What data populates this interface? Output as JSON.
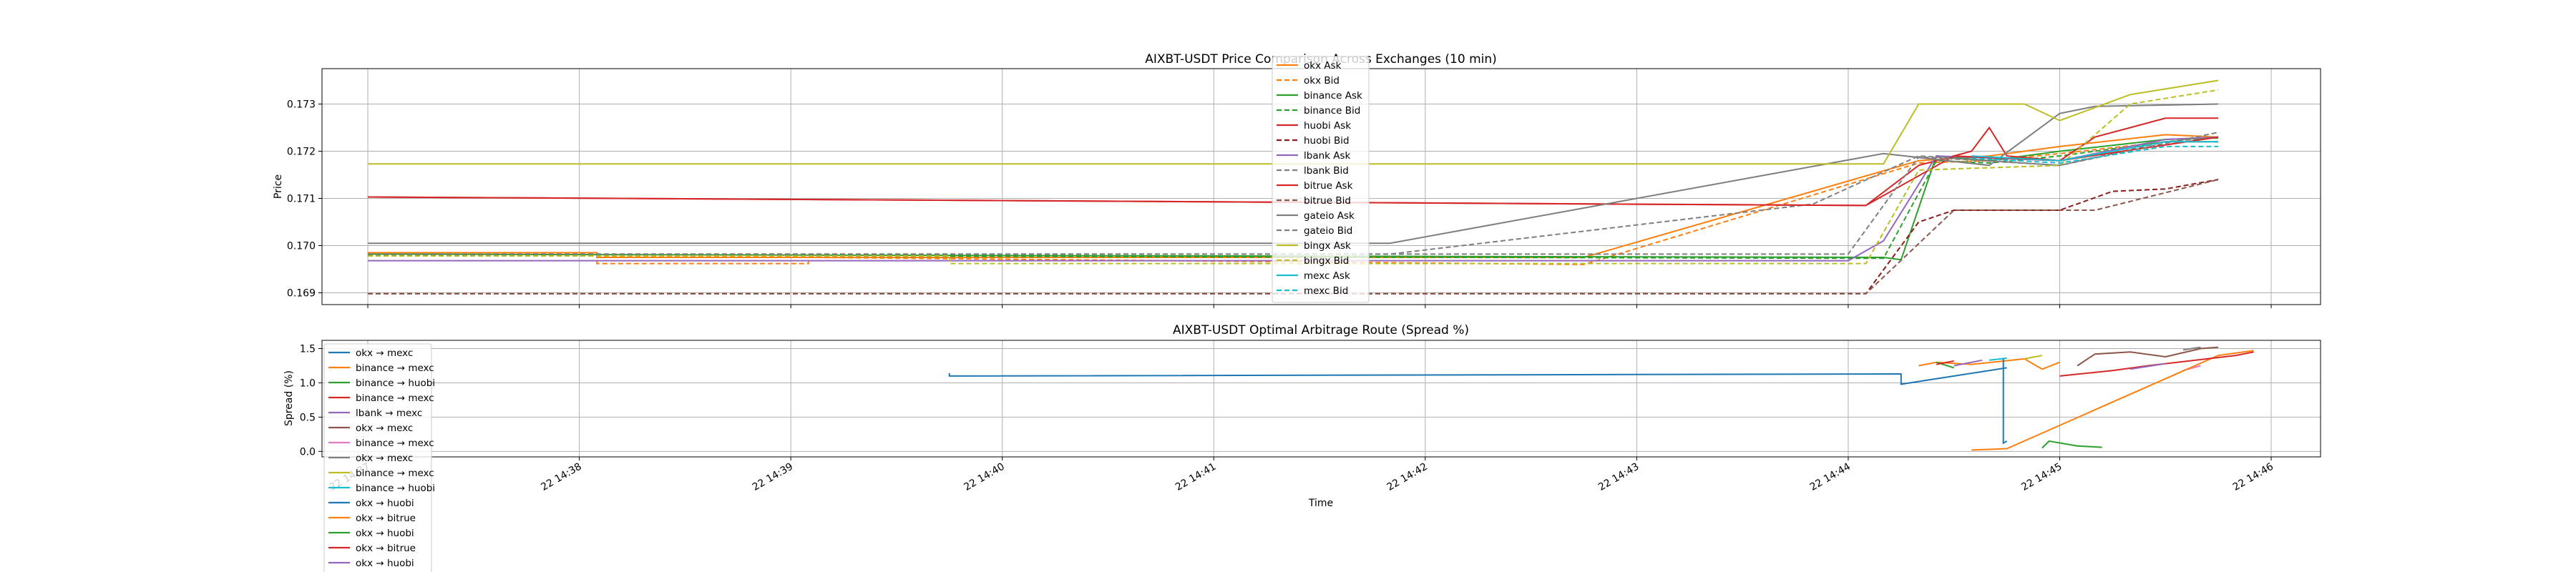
{
  "chart_data": [
    {
      "type": "line",
      "title": "AIXBT-USDT Price Comparison Across Exchanges (10 min)",
      "xlabel": "",
      "ylabel": "Price",
      "xlim": [
        "2025-??-22 14:36:47",
        "2025-??-22 14:46:14"
      ],
      "ylim": [
        0.16875,
        0.17375
      ],
      "yticks": [
        "0.169",
        "0.170",
        "0.171",
        "0.172",
        "0.173"
      ],
      "xticks": [
        "22 14:37",
        "22 14:38",
        "22 14:39",
        "22 14:40",
        "22 14:41",
        "22 14:42",
        "22 14:43",
        "22 14:44",
        "22 14:45",
        "22 14:46"
      ],
      "grid": true,
      "legend_position": "top-center",
      "series": [
        {
          "name": "okx Ask",
          "color": "#ff7f0e",
          "dash": "solid",
          "points": [
            [
              "14:37:00",
              0.16985
            ],
            [
              "14:38:05",
              0.16985
            ],
            [
              "14:38:05",
              0.16975
            ],
            [
              "14:42:45",
              0.16975
            ],
            [
              "14:44:20",
              0.1718
            ],
            [
              "14:44:40",
              0.1719
            ],
            [
              "14:45:00",
              0.1721
            ],
            [
              "14:45:30",
              0.17235
            ],
            [
              "14:45:45",
              0.1723
            ]
          ]
        },
        {
          "name": "okx Bid",
          "color": "#ff7f0e",
          "dash": "dashed",
          "points": [
            [
              "14:37:00",
              0.16982
            ],
            [
              "14:38:05",
              0.16982
            ],
            [
              "14:38:05",
              0.16962
            ],
            [
              "14:39:05",
              0.16962
            ],
            [
              "14:39:05",
              0.16975
            ],
            [
              "14:42:45",
              0.1696
            ],
            [
              "14:44:20",
              0.17175
            ],
            [
              "14:44:40",
              0.1718
            ],
            [
              "14:45:00",
              0.17195
            ],
            [
              "14:45:30",
              0.1722
            ],
            [
              "14:45:45",
              0.1722
            ]
          ]
        },
        {
          "name": "binance Ask",
          "color": "#2ca02c",
          "dash": "solid",
          "points": [
            [
              "14:37:00",
              0.16982
            ],
            [
              "14:44:10",
              0.16975
            ],
            [
              "14:44:15",
              0.1697
            ],
            [
              "14:44:25",
              0.1719
            ],
            [
              "14:44:40",
              0.1718
            ],
            [
              "14:45:00",
              0.172
            ],
            [
              "14:45:30",
              0.17225
            ],
            [
              "14:45:45",
              0.17228
            ]
          ]
        },
        {
          "name": "binance Bid",
          "color": "#2ca02c",
          "dash": "dashed",
          "points": [
            [
              "14:37:00",
              0.1698
            ],
            [
              "14:44:10",
              0.16973
            ],
            [
              "14:44:25",
              0.1718
            ],
            [
              "14:44:40",
              0.17175
            ],
            [
              "14:45:00",
              0.1719
            ],
            [
              "14:45:30",
              0.1722
            ],
            [
              "14:45:45",
              0.1722
            ]
          ]
        },
        {
          "name": "huobi Ask",
          "color": "#d62728",
          "dash": "solid",
          "points": [
            [
              "14:37:00",
              0.17103
            ],
            [
              "14:44:05",
              0.17085
            ],
            [
              "14:44:20",
              0.1717
            ],
            [
              "14:44:35",
              0.172
            ],
            [
              "14:44:40",
              0.1725
            ],
            [
              "14:44:45",
              0.1719
            ],
            [
              "14:45:00",
              0.1718
            ],
            [
              "14:45:10",
              0.1723
            ],
            [
              "14:45:20",
              0.1725
            ],
            [
              "14:45:30",
              0.1727
            ],
            [
              "14:45:45",
              0.1727
            ]
          ]
        },
        {
          "name": "huobi Bid",
          "color": "#8c1c1c",
          "dash": "dashed",
          "points": [
            [
              "14:37:00",
              0.16898
            ],
            [
              "14:44:05",
              0.16898
            ],
            [
              "14:44:20",
              0.1705
            ],
            [
              "14:44:30",
              0.17075
            ],
            [
              "14:45:00",
              0.17075
            ],
            [
              "14:45:15",
              0.17115
            ],
            [
              "14:45:30",
              0.1712
            ],
            [
              "14:45:45",
              0.1714
            ]
          ]
        },
        {
          "name": "lbank Ask",
          "color": "#9467bd",
          "dash": "solid",
          "points": [
            [
              "14:37:00",
              0.16968
            ],
            [
              "14:40:45",
              0.16968
            ],
            [
              "14:44:00",
              0.16968
            ],
            [
              "14:44:10",
              0.1701
            ],
            [
              "14:44:25",
              0.1719
            ],
            [
              "14:45:00",
              0.1718
            ],
            [
              "14:45:30",
              0.17225
            ],
            [
              "14:45:45",
              0.1723
            ]
          ]
        },
        {
          "name": "lbank Bid",
          "color": "#7f7f7f",
          "dash": "dashed",
          "points": [
            [
              "14:37:00",
              0.16982
            ],
            [
              "14:41:50",
              0.16982
            ],
            [
              "14:43:50",
              0.17088
            ],
            [
              "14:44:20",
              0.1719
            ],
            [
              "14:45:00",
              0.1717
            ],
            [
              "14:45:30",
              0.1722
            ],
            [
              "14:45:45",
              0.1723
            ]
          ]
        },
        {
          "name": "bitrue Ask",
          "color": "#d62728",
          "dash": "solid",
          "points": [
            [
              "14:37:00",
              0.17103
            ],
            [
              "14:44:05",
              0.17085
            ],
            [
              "14:44:30",
              0.1719
            ],
            [
              "14:45:00",
              0.1718
            ],
            [
              "14:45:45",
              0.1723
            ]
          ]
        },
        {
          "name": "bitrue Bid",
          "color": "#8c564b",
          "dash": "dashed",
          "points": [
            [
              "14:37:00",
              0.16898
            ],
            [
              "14:44:05",
              0.16898
            ],
            [
              "14:44:30",
              0.17075
            ],
            [
              "14:45:10",
              0.17075
            ],
            [
              "14:45:45",
              0.1714
            ]
          ]
        },
        {
          "name": "gateio Ask",
          "color": "#7f7f7f",
          "dash": "solid",
          "points": [
            [
              "14:37:00",
              0.17005
            ],
            [
              "14:41:50",
              0.17005
            ],
            [
              "14:44:10",
              0.17195
            ],
            [
              "14:44:40",
              0.1717
            ],
            [
              "14:45:00",
              0.1728
            ],
            [
              "14:45:10",
              0.17295
            ],
            [
              "14:45:45",
              0.173
            ]
          ]
        },
        {
          "name": "gateio Bid",
          "color": "#7f7f7f",
          "dash": "dashed",
          "points": [
            [
              "14:37:00",
              0.16982
            ],
            [
              "14:44:00",
              0.16982
            ],
            [
              "14:44:20",
              0.17188
            ],
            [
              "14:45:00",
              0.1717
            ],
            [
              "14:45:45",
              0.1724
            ]
          ]
        },
        {
          "name": "bingx Ask",
          "color": "#bcbd22",
          "dash": "solid",
          "points": [
            [
              "14:37:00",
              0.17173
            ],
            [
              "14:44:10",
              0.17173
            ],
            [
              "14:44:20",
              0.173
            ],
            [
              "14:44:50",
              0.173
            ],
            [
              "14:45:00",
              0.17265
            ],
            [
              "14:45:20",
              0.1732
            ],
            [
              "14:45:45",
              0.1735
            ]
          ]
        },
        {
          "name": "bingx Bid",
          "color": "#bcbd22",
          "dash": "dashed",
          "points": [
            [
              "14:37:00",
              0.16978
            ],
            [
              "14:39:45",
              0.16978
            ],
            [
              "14:39:45",
              0.16962
            ],
            [
              "14:44:05",
              0.16962
            ],
            [
              "14:44:20",
              0.1716
            ],
            [
              "14:45:00",
              0.1717
            ],
            [
              "14:45:20",
              0.173
            ],
            [
              "14:45:45",
              0.1733
            ]
          ]
        },
        {
          "name": "mexc Ask",
          "color": "#17becf",
          "dash": "solid",
          "points": [
            [
              "14:44:35",
              0.1719
            ],
            [
              "14:45:00",
              0.1718
            ],
            [
              "14:45:30",
              0.1722
            ],
            [
              "14:45:45",
              0.1722
            ]
          ]
        },
        {
          "name": "mexc Bid",
          "color": "#17becf",
          "dash": "dashed",
          "points": [
            [
              "14:44:35",
              0.17185
            ],
            [
              "14:45:00",
              0.17175
            ],
            [
              "14:45:30",
              0.1721
            ],
            [
              "14:45:45",
              0.1721
            ]
          ]
        }
      ]
    },
    {
      "type": "line",
      "title": "AIXBT-USDT Optimal Arbitrage Route (Spread %)",
      "xlabel": "Time",
      "ylabel": "Spread (%)",
      "xlim": [
        "2025-??-22 14:36:47",
        "2025-??-22 14:46:14"
      ],
      "ylim": [
        -0.08,
        1.62
      ],
      "yticks": [
        "0.0",
        "0.5",
        "1.0",
        "1.5"
      ],
      "xticks": [
        "22 14:37",
        "22 14:38",
        "22 14:39",
        "22 14:40",
        "22 14:41",
        "22 14:42",
        "22 14:43",
        "22 14:44",
        "22 14:45",
        "22 14:46"
      ],
      "grid": true,
      "legend_position": "left-outside-bottom",
      "series": [
        {
          "name": "okx → mexc",
          "color": "#1f77b4",
          "points": [
            [
              "14:39:45",
              1.14
            ],
            [
              "14:39:45",
              1.1
            ],
            [
              "14:44:15",
              1.13
            ],
            [
              "14:44:15",
              0.98
            ],
            [
              "14:44:30",
              1.1
            ],
            [
              "14:44:40",
              1.18
            ],
            [
              "14:44:45",
              1.22
            ]
          ]
        },
        {
          "name": "binance → mexc",
          "color": "#ff7f0e",
          "points": [
            [
              "14:44:20",
              1.25
            ],
            [
              "14:44:25",
              1.3
            ],
            [
              "14:44:35",
              1.27
            ],
            [
              "14:44:50",
              1.35
            ],
            [
              "14:44:55",
              1.2
            ],
            [
              "14:45:00",
              1.3
            ]
          ]
        },
        {
          "name": "binance → huobi",
          "color": "#2ca02c",
          "points": [
            [
              "14:44:25",
              1.3
            ],
            [
              "14:44:30",
              1.22
            ]
          ]
        },
        {
          "name": "binance → mexc",
          "color": "#d62728",
          "points": [
            [
              "14:44:25",
              1.27
            ],
            [
              "14:44:30",
              1.32
            ]
          ]
        },
        {
          "name": "lbank → mexc",
          "color": "#9467bd",
          "points": [
            [
              "14:44:30",
              1.25
            ],
            [
              "14:44:38",
              1.33
            ]
          ]
        },
        {
          "name": "okx → mexc",
          "color": "#8c564b",
          "points": [
            [
              "14:45:05",
              1.25
            ],
            [
              "14:45:10",
              1.42
            ],
            [
              "14:45:20",
              1.45
            ],
            [
              "14:45:30",
              1.38
            ],
            [
              "14:45:40",
              1.5
            ],
            [
              "14:45:45",
              1.52
            ]
          ]
        },
        {
          "name": "binance → mexc",
          "color": "#e377c2",
          "points": [
            [
              "14:45:35",
              1.18
            ],
            [
              "14:45:40",
              1.25
            ]
          ]
        },
        {
          "name": "okx → mexc",
          "color": "#7f7f7f",
          "points": [
            [
              "14:45:35",
              1.48
            ],
            [
              "14:45:40",
              1.52
            ]
          ]
        },
        {
          "name": "binance → mexc",
          "color": "#bcbd22",
          "points": [
            [
              "14:44:50",
              1.35
            ],
            [
              "14:44:55",
              1.4
            ]
          ]
        },
        {
          "name": "binance → huobi",
          "color": "#17becf",
          "points": [
            [
              "14:44:40",
              1.33
            ],
            [
              "14:44:45",
              1.36
            ]
          ]
        },
        {
          "name": "okx → huobi",
          "color": "#1f77b4",
          "points": [
            [
              "14:44:44",
              1.35
            ],
            [
              "14:44:44",
              0.12
            ],
            [
              "14:44:45",
              0.15
            ]
          ]
        },
        {
          "name": "okx → bitrue",
          "color": "#ff7f0e",
          "points": [
            [
              "14:44:35",
              0.02
            ],
            [
              "14:44:45",
              0.04
            ],
            [
              "14:45:45",
              1.4
            ],
            [
              "14:45:55",
              1.47
            ]
          ]
        },
        {
          "name": "okx → huobi",
          "color": "#2ca02c",
          "points": [
            [
              "14:44:55",
              0.05
            ],
            [
              "14:44:57",
              0.15
            ],
            [
              "14:45:05",
              0.08
            ],
            [
              "14:45:12",
              0.06
            ]
          ]
        },
        {
          "name": "okx → bitrue",
          "color": "#d62728",
          "points": [
            [
              "14:45:00",
              1.1
            ],
            [
              "14:45:15",
              1.18
            ],
            [
              "14:45:25",
              1.25
            ],
            [
              "14:45:50",
              1.4
            ],
            [
              "14:45:55",
              1.45
            ]
          ]
        },
        {
          "name": "okx → huobi",
          "color": "#9467bd",
          "points": [
            [
              "14:45:20",
              1.2
            ],
            [
              "14:45:30",
              1.28
            ]
          ]
        }
      ]
    }
  ]
}
